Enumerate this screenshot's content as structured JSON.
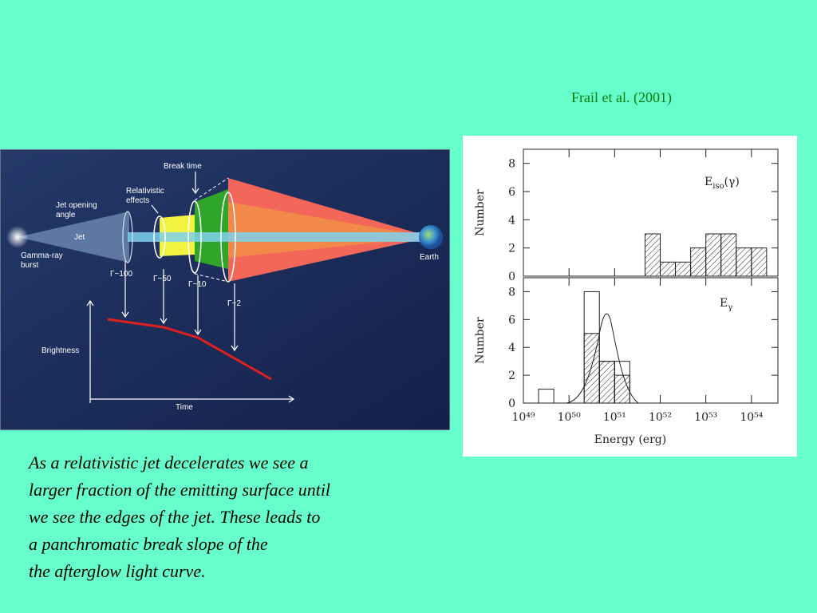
{
  "citation": "Frail et al. (2001)",
  "diagram": {
    "break_time": "Break time",
    "relativistic": [
      "Relativistic",
      "effects"
    ],
    "jet_opening": [
      "Jet opening",
      "angle"
    ],
    "jet": "Jet",
    "source": [
      "Gamma-ray",
      "burst"
    ],
    "earth": "Earth",
    "gammas": [
      "Γ~100",
      "Γ~50",
      "Γ~10",
      "Γ~2"
    ],
    "brightness": "Brightness",
    "time": "Time"
  },
  "histogram": {
    "x_label": "Energy (erg)",
    "log_x": true,
    "xlim": [
      1e+49,
      3.8e+54
    ],
    "xticks": [
      {
        "value": 1e+49,
        "label": "10⁴⁹"
      },
      {
        "value": 1e+50,
        "label": "10⁵⁰"
      },
      {
        "value": 1e+51,
        "label": "10⁵¹"
      },
      {
        "value": 1e+52,
        "label": "10⁵²"
      },
      {
        "value": 1e+53,
        "label": "10⁵³"
      },
      {
        "value": 1e+54,
        "label": "10⁵⁴"
      }
    ],
    "panels": [
      {
        "y_label": "Number",
        "ylim": [
          0,
          9
        ],
        "yticks": [
          0,
          2,
          4,
          6,
          8
        ],
        "legend": {
          "base": "E",
          "sub": "iso",
          "suffix": "(γ)"
        },
        "hatched": {
          "bins": [
            4.64e+51,
            1e+52,
            2.15e+52,
            4.64e+52,
            1e+53,
            2.15e+53,
            4.64e+53,
            1e+54,
            2.15e+54
          ],
          "counts": [
            3,
            1,
            1,
            2,
            3,
            3,
            2,
            2
          ]
        }
      },
      {
        "y_label": "Number",
        "ylim": [
          0,
          9
        ],
        "yticks": [
          0,
          2,
          4,
          6,
          8
        ],
        "legend": {
          "base": "E",
          "sub": "γ",
          "suffix": ""
        },
        "hatched": {
          "bins": [
            2.15e+50,
            4.64e+50,
            1e+51,
            2.15e+51
          ],
          "counts": [
            5,
            3,
            2
          ]
        },
        "outline": {
          "bins": [
            2.15e+49,
            4.64e+49,
            1e+50,
            2.15e+50,
            4.64e+50,
            1e+51,
            2.15e+51
          ],
          "counts": [
            1,
            0,
            0,
            8,
            3,
            3
          ]
        }
      }
    ]
  },
  "caption": [
    "As a relativistic jet decelerates we see a",
    "larger fraction of the emitting surface until",
    "we see the edges of the jet. These leads to",
    "a panchromatic break slope of the",
    "the afterglow light curve."
  ]
}
